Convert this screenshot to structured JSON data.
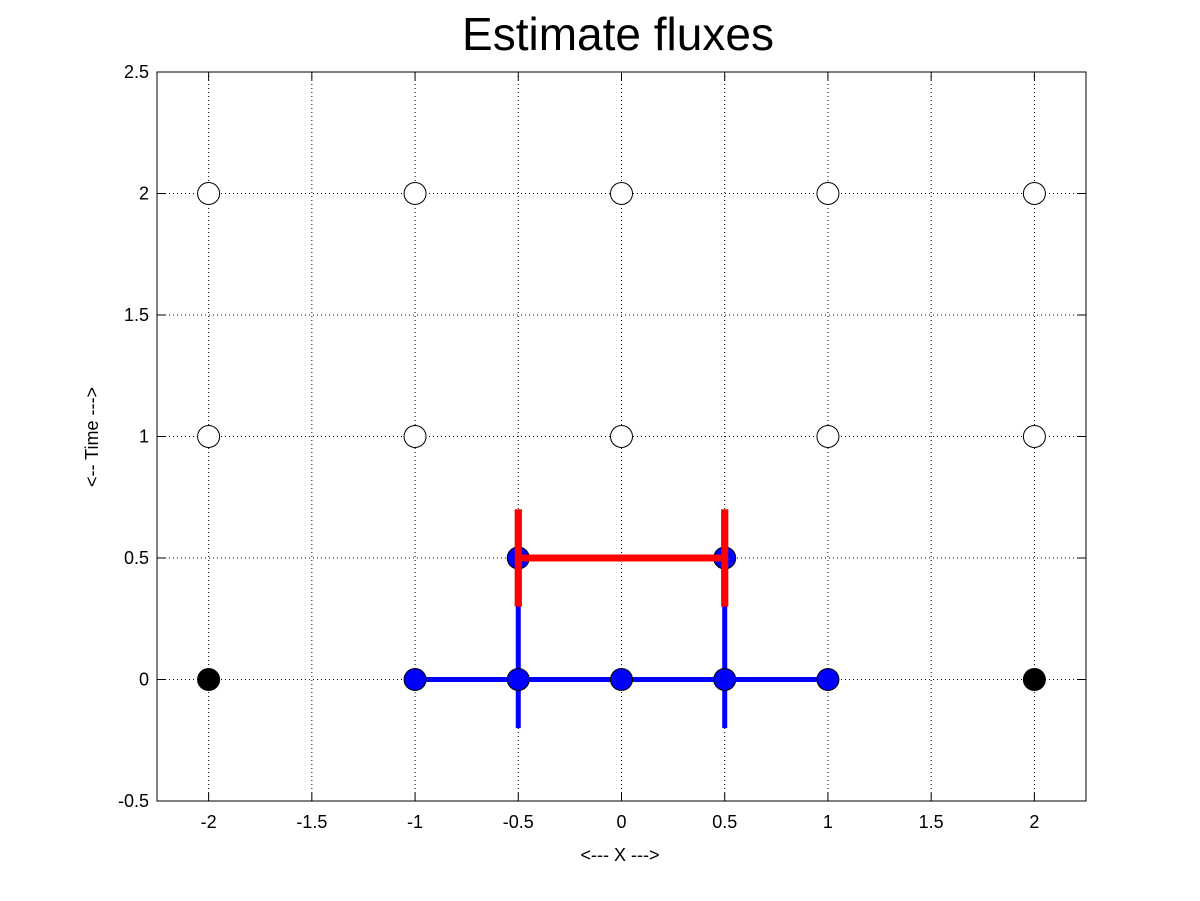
{
  "chart_data": {
    "type": "scatter",
    "title": "Estimate fluxes",
    "xlabel": "<--- X --->",
    "ylabel": "<-- Time --->",
    "xlim": [
      -2.25,
      2.25
    ],
    "ylim": [
      -0.5,
      2.5
    ],
    "xticks": [
      "-2",
      "-1.5",
      "-1",
      "-0.5",
      "0",
      "0.5",
      "1",
      "1.5",
      "2"
    ],
    "xtick_values": [
      -2,
      -1.5,
      -1,
      -0.5,
      0,
      0.5,
      1,
      1.5,
      2
    ],
    "yticks": [
      "-0.5",
      "0",
      "0.5",
      "1",
      "1.5",
      "2",
      "2.5"
    ],
    "ytick_values": [
      -0.5,
      0,
      0.5,
      1,
      1.5,
      2,
      2.5
    ],
    "grid": true,
    "series": [
      {
        "marker": "open-circle",
        "color": "#ffffff",
        "points": [
          [
            -2,
            1
          ],
          [
            -1,
            1
          ],
          [
            0,
            1
          ],
          [
            1,
            1
          ],
          [
            2,
            1
          ],
          [
            -2,
            2
          ],
          [
            -1,
            2
          ],
          [
            0,
            2
          ],
          [
            1,
            2
          ],
          [
            2,
            2
          ]
        ]
      },
      {
        "marker": "filled-circle",
        "color": "#000000",
        "points": [
          [
            -2,
            0
          ],
          [
            2,
            0
          ]
        ]
      },
      {
        "marker": "filled-circle",
        "color": "#0000ff",
        "points": [
          [
            -1,
            0
          ],
          [
            -0.5,
            0
          ],
          [
            0,
            0
          ],
          [
            0.5,
            0
          ],
          [
            1,
            0
          ],
          [
            -0.5,
            0.5
          ],
          [
            0.5,
            0.5
          ]
        ]
      }
    ],
    "line_segments": [
      {
        "color": "#0000ff",
        "from": [
          -1,
          0
        ],
        "to": [
          1,
          0
        ]
      },
      {
        "color": "#0000ff",
        "from": [
          -0.5,
          -0.2
        ],
        "to": [
          -0.5,
          0.5
        ]
      },
      {
        "color": "#0000ff",
        "from": [
          0.5,
          -0.2
        ],
        "to": [
          0.5,
          0.5
        ]
      },
      {
        "color": "#ff0000",
        "from": [
          -0.5,
          0.5
        ],
        "to": [
          0.5,
          0.5
        ]
      },
      {
        "color": "#ff0000",
        "from": [
          -0.5,
          0.3
        ],
        "to": [
          -0.5,
          0.7
        ]
      },
      {
        "color": "#ff0000",
        "from": [
          0.5,
          0.3
        ],
        "to": [
          0.5,
          0.7
        ]
      }
    ]
  }
}
